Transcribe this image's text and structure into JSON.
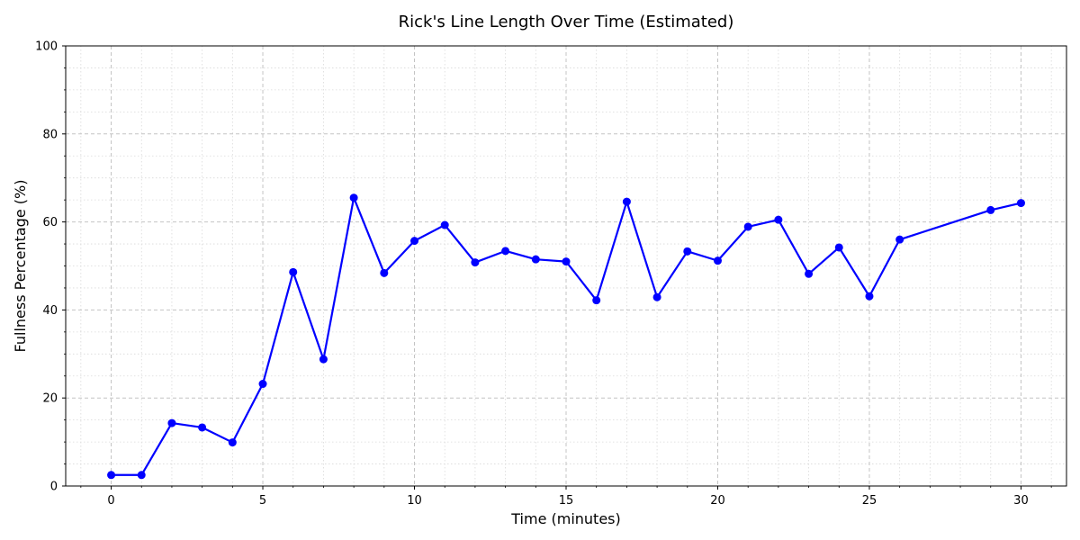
{
  "chart_data": {
    "type": "line",
    "title": "Rick's Line Length Over Time (Estimated)",
    "xlabel": "Time (minutes)",
    "ylabel": "Fullness Percentage (%)",
    "xlim": [
      -1.5,
      31.5
    ],
    "ylim": [
      0,
      100
    ],
    "x_ticks": [
      0,
      5,
      10,
      15,
      20,
      25,
      30
    ],
    "y_ticks": [
      0,
      20,
      40,
      60,
      80,
      100
    ],
    "grid": true,
    "minor_grid": true,
    "series": [
      {
        "color": "#0000ff",
        "marker": "circle",
        "x": [
          0,
          1,
          2,
          3,
          4,
          5,
          6,
          7,
          8,
          9,
          10,
          11,
          12,
          13,
          14,
          15,
          16,
          17,
          18,
          19,
          20,
          21,
          22,
          23,
          24,
          25,
          26,
          29,
          30
        ],
        "values": [
          2.5,
          2.5,
          14.3,
          13.3,
          9.9,
          23.2,
          48.6,
          28.8,
          65.5,
          48.4,
          55.7,
          59.3,
          50.8,
          53.4,
          51.5,
          51.0,
          42.2,
          64.6,
          42.9,
          53.3,
          51.2,
          58.9,
          60.5,
          48.2,
          54.2,
          43.1,
          56.0,
          62.7,
          64.3
        ]
      }
    ]
  }
}
